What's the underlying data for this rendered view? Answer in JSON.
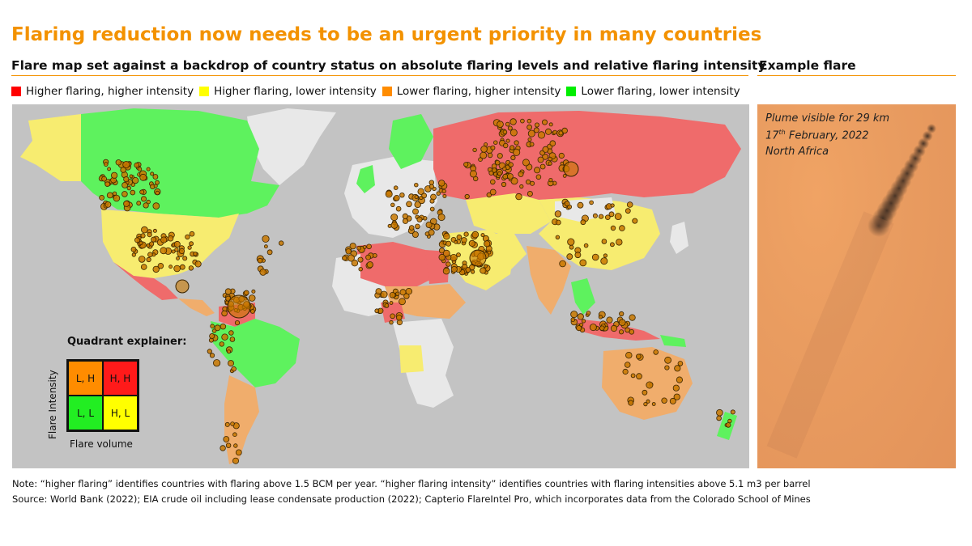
{
  "header": {
    "title": "Flaring reduction now needs to be an urgent priority in many countries",
    "subtitle": "Flare map set against a backdrop of country status on absolute flaring levels and relative flaring intensity",
    "example_title": "Example flare"
  },
  "legend": {
    "items": [
      {
        "label": "Higher flaring, higher intensity",
        "color": "#ff0000"
      },
      {
        "label": "Higher flaring, lower intensity",
        "color": "#ffff00"
      },
      {
        "label": "Lower flaring, higher intensity",
        "color": "#ff8c00"
      },
      {
        "label": "Lower flaring, lower intensity",
        "color": "#00ee00"
      }
    ]
  },
  "map": {
    "colors": {
      "ocean": "#c3c3c3",
      "no_data": "#e8e8e8",
      "higher_flaring_higher_intensity": "#ef6b6b",
      "higher_flaring_lower_intensity": "#f7ec70",
      "lower_flaring_higher_intensity": "#f0ad6c",
      "lower_flaring_lower_intensity": "#5ef25e",
      "flare_marker": "#c87800"
    }
  },
  "explainer": {
    "title": "Quadrant explainer:",
    "cells": [
      {
        "label": "L, H",
        "color": "#ff8c00"
      },
      {
        "label": "H, H",
        "color": "#ff1a1a"
      },
      {
        "label": "L, L",
        "color": "#22ee22"
      },
      {
        "label": "H, L",
        "color": "#ffff00"
      }
    ],
    "y_label": "Flare Intensity",
    "x_label": "Flare volume"
  },
  "example": {
    "line1": "Plume visible for 29 km",
    "line2_day": "17",
    "line2_suffix": "th",
    "line2_rest": " February, 2022",
    "line3": "North Africa"
  },
  "notes": {
    "note": "Note: “higher flaring” identifies countries with flaring above 1.5 BCM per year. “higher flaring intensity” identifies countries with flaring intensities above 5.1 m3 per barrel",
    "source": "Source: World Bank (2022); EIA crude oil including lease condensate production (2022); Capterio FlareIntel Pro, which incorporates data from the Colorado School of Mines"
  }
}
